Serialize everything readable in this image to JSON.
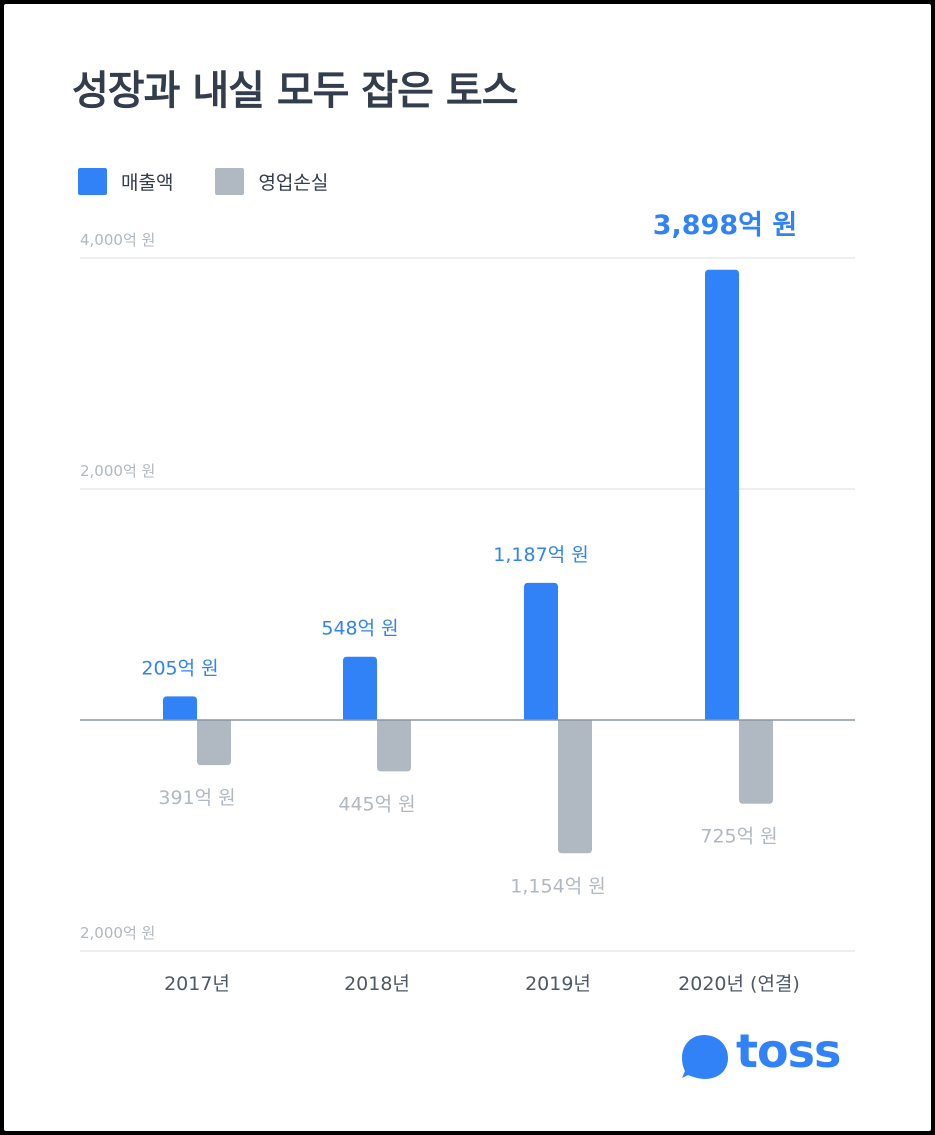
{
  "title": "성장과 내실 모두 잡은 토스",
  "colors": {
    "revenue": "#3182f6",
    "loss": "#b0b8c1",
    "title": "#333d4b",
    "revenue_label": "#3182f6",
    "loss_label": "#b0b8c1",
    "axis_label": "#b0b8c1",
    "grid": "#e5e8eb",
    "zero_line": "#8b95a1"
  },
  "legend": {
    "revenue": "매출액",
    "loss": "영업손실"
  },
  "chart_data": {
    "type": "bar",
    "categories": [
      "2017년",
      "2018년",
      "2019년",
      "2020년 (연결)"
    ],
    "series": [
      {
        "name": "매출액",
        "values": [
          205,
          548,
          1187,
          3898
        ],
        "labels": [
          "205억 원",
          "548억 원",
          "1,187억 원",
          "3,898억 원"
        ]
      },
      {
        "name": "영업손실",
        "values": [
          -391,
          -445,
          -1154,
          -725
        ],
        "labels": [
          "391억 원",
          "445억 원",
          "1,154억 원",
          "725억 원"
        ]
      }
    ],
    "yticks": [
      {
        "value": 4000,
        "label": "4,000억 원"
      },
      {
        "value": 2000,
        "label": "2,000억 원"
      },
      {
        "value": -2000,
        "label": "2,000억 원"
      }
    ],
    "ylim": [
      -2000,
      4000
    ],
    "xlabel": "",
    "ylabel": "",
    "grid": true,
    "legend_position": "top-left"
  },
  "logo": {
    "text": "toss",
    "color": "#3182f6"
  }
}
